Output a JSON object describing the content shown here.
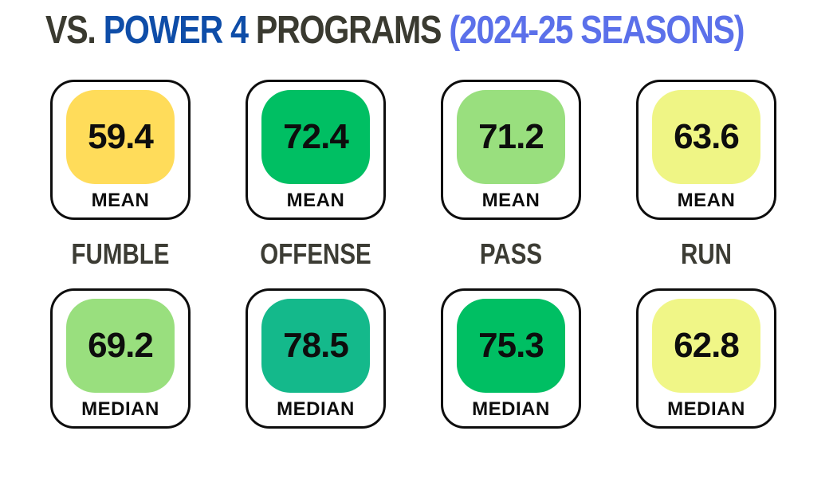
{
  "title": {
    "segments": [
      {
        "text": "VS. ",
        "color": "#3a3a30"
      },
      {
        "text": "POWER 4",
        "color": "#0e4da8"
      },
      {
        "text": " PROGRAMS ",
        "color": "#3a3a30"
      },
      {
        "text": "(2024-25 SEASONS)",
        "color": "#5b70ea"
      }
    ]
  },
  "columns": [
    {
      "category": "FUMBLE",
      "mean": {
        "label": "MEAN",
        "value": "59.4",
        "color": "#ffdc5a"
      },
      "median": {
        "label": "MEDIAN",
        "value": "69.2",
        "color": "#99df7e"
      }
    },
    {
      "category": "OFFENSE",
      "mean": {
        "label": "MEAN",
        "value": "72.4",
        "color": "#00bf63"
      },
      "median": {
        "label": "MEDIAN",
        "value": "78.5",
        "color": "#14b98b"
      }
    },
    {
      "category": "PASS",
      "mean": {
        "label": "MEAN",
        "value": "71.2",
        "color": "#99df7e"
      },
      "median": {
        "label": "MEDIAN",
        "value": "75.3",
        "color": "#00bf63"
      }
    },
    {
      "category": "RUN",
      "mean": {
        "label": "MEAN",
        "value": "63.6",
        "color": "#eff585"
      },
      "median": {
        "label": "MEDIAN",
        "value": "62.8",
        "color": "#f0f687"
      }
    }
  ],
  "chart_data": {
    "type": "table",
    "title": "VS. POWER 4 PROGRAMS (2024-25 SEASONS)",
    "categories": [
      "FUMBLE",
      "OFFENSE",
      "PASS",
      "RUN"
    ],
    "series": [
      {
        "name": "MEAN",
        "values": [
          59.4,
          72.4,
          71.2,
          63.6
        ]
      },
      {
        "name": "MEDIAN",
        "values": [
          69.2,
          78.5,
          75.3,
          62.8
        ]
      }
    ]
  }
}
